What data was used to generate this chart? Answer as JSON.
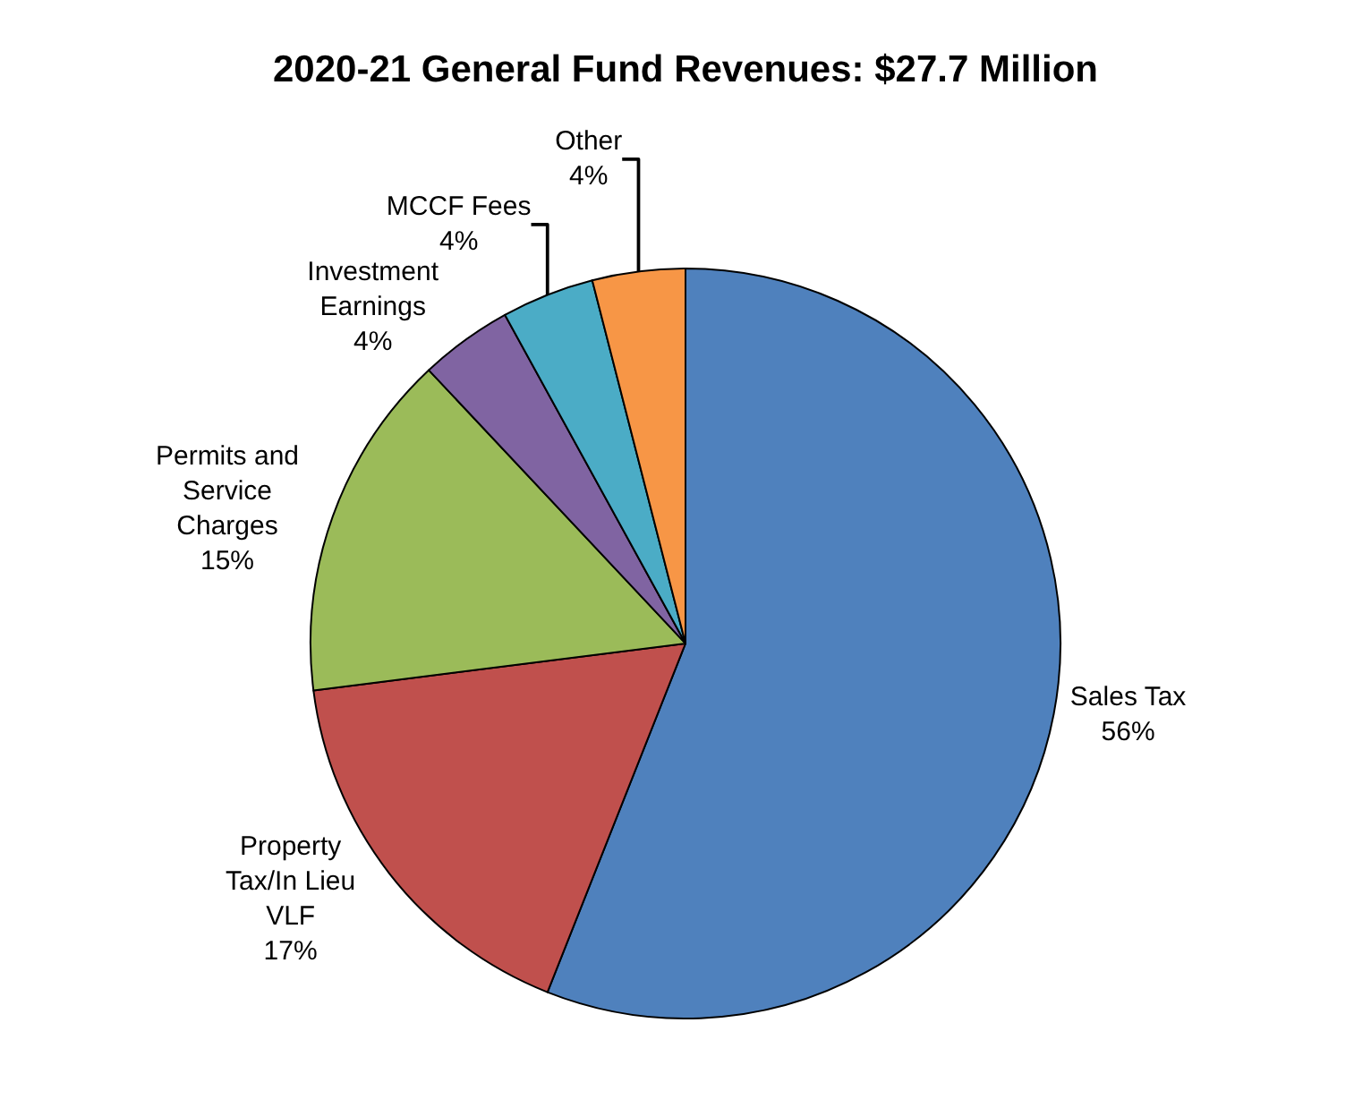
{
  "chart_data": {
    "type": "pie",
    "title": "2020-21 General Fund Revenues: $27.7 Million",
    "categories": [
      "Sales Tax",
      "Property Tax/In Lieu VLF",
      "Permits and Service Charges",
      "Investment Earnings",
      "MCCF Fees",
      "Other"
    ],
    "values": [
      56,
      17,
      15,
      4,
      4,
      4
    ],
    "value_labels": [
      "56%",
      "17%",
      "15%",
      "4%",
      "4%",
      "4%"
    ],
    "colors": [
      "#4f81bd",
      "#c0504d",
      "#9bbb59",
      "#8064a2",
      "#4bacc6",
      "#f79646"
    ],
    "legend": false
  }
}
